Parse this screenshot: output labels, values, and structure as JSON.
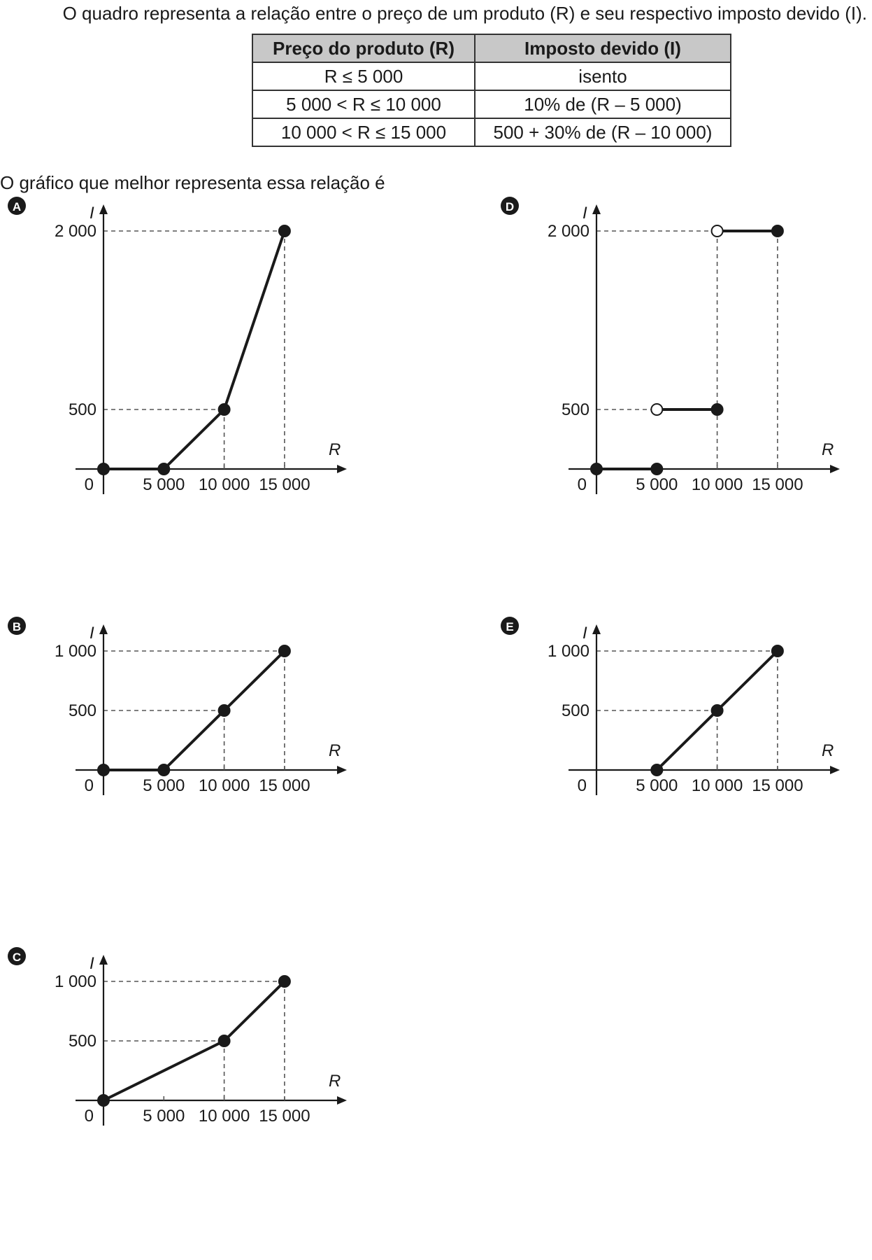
{
  "intro_text": "O quadro representa a relação entre o preço de um produto (R) e seu respectivo imposto devido (I).",
  "question_text": "O gráfico que melhor representa essa relação é",
  "table": {
    "headers": [
      "Preço do produto (R)",
      "Imposto devido (I)"
    ],
    "rows": [
      [
        "R ≤ 5 000",
        "isento"
      ],
      [
        "5 000 < R ≤ 10 000",
        "10% de (R – 5 000)"
      ],
      [
        "10 000 < R ≤ 15 000",
        "500 + 30% de (R – 10 000)"
      ]
    ]
  },
  "chart_data": [
    {
      "option": "A",
      "type": "line",
      "xlabel": "R",
      "ylabel": "I",
      "origin_label": "0",
      "x_ticks": [
        "5 000",
        "10 000",
        "15 000"
      ],
      "y_ticks": [
        {
          "value": 500,
          "label": "500"
        },
        {
          "value": 2000,
          "label": "2 000"
        }
      ],
      "ylim": [
        0,
        2000
      ],
      "segments": [
        {
          "points": [
            [
              0,
              0
            ],
            [
              5000,
              0
            ],
            [
              10000,
              500
            ],
            [
              15000,
              2000
            ]
          ]
        }
      ],
      "markers": [
        {
          "x": 0,
          "y": 0,
          "filled": true
        },
        {
          "x": 5000,
          "y": 0,
          "filled": true
        },
        {
          "x": 10000,
          "y": 500,
          "filled": true
        },
        {
          "x": 15000,
          "y": 2000,
          "filled": true
        }
      ]
    },
    {
      "option": "B",
      "type": "line",
      "xlabel": "R",
      "ylabel": "I",
      "origin_label": "0",
      "x_ticks": [
        "5 000",
        "10 000",
        "15 000"
      ],
      "y_ticks": [
        {
          "value": 500,
          "label": "500"
        },
        {
          "value": 1000,
          "label": "1 000"
        }
      ],
      "ylim": [
        0,
        1000
      ],
      "segments": [
        {
          "points": [
            [
              0,
              0
            ],
            [
              5000,
              0
            ],
            [
              10000,
              500
            ],
            [
              15000,
              1000
            ]
          ]
        }
      ],
      "markers": [
        {
          "x": 0,
          "y": 0,
          "filled": true
        },
        {
          "x": 5000,
          "y": 0,
          "filled": true
        },
        {
          "x": 10000,
          "y": 500,
          "filled": true
        },
        {
          "x": 15000,
          "y": 1000,
          "filled": true
        }
      ]
    },
    {
      "option": "C",
      "type": "line",
      "xlabel": "R",
      "ylabel": "I",
      "origin_label": "0",
      "x_ticks": [
        "5 000",
        "10 000",
        "15 000"
      ],
      "y_ticks": [
        {
          "value": 500,
          "label": "500"
        },
        {
          "value": 1000,
          "label": "1 000"
        }
      ],
      "ylim": [
        0,
        1000
      ],
      "segments": [
        {
          "points": [
            [
              0,
              0
            ],
            [
              10000,
              500
            ],
            [
              15000,
              1000
            ]
          ]
        }
      ],
      "markers": [
        {
          "x": 0,
          "y": 0,
          "filled": true
        },
        {
          "x": 10000,
          "y": 500,
          "filled": true
        },
        {
          "x": 15000,
          "y": 1000,
          "filled": true
        }
      ]
    },
    {
      "option": "D",
      "type": "line",
      "xlabel": "R",
      "ylabel": "I",
      "origin_label": "0",
      "x_ticks": [
        "5 000",
        "10 000",
        "15 000"
      ],
      "y_ticks": [
        {
          "value": 500,
          "label": "500"
        },
        {
          "value": 2000,
          "label": "2 000"
        }
      ],
      "ylim": [
        0,
        2000
      ],
      "segments": [
        {
          "points": [
            [
              0,
              0
            ],
            [
              5000,
              0
            ]
          ]
        },
        {
          "points": [
            [
              5000,
              500
            ],
            [
              10000,
              500
            ]
          ]
        },
        {
          "points": [
            [
              10000,
              2000
            ],
            [
              15000,
              2000
            ]
          ]
        }
      ],
      "markers": [
        {
          "x": 0,
          "y": 0,
          "filled": true
        },
        {
          "x": 5000,
          "y": 0,
          "filled": true
        },
        {
          "x": 5000,
          "y": 500,
          "filled": false
        },
        {
          "x": 10000,
          "y": 500,
          "filled": true
        },
        {
          "x": 10000,
          "y": 2000,
          "filled": false
        },
        {
          "x": 15000,
          "y": 2000,
          "filled": true
        }
      ]
    },
    {
      "option": "E",
      "type": "line",
      "xlabel": "R",
      "ylabel": "I",
      "origin_label": "0",
      "x_ticks": [
        "5 000",
        "10 000",
        "15 000"
      ],
      "y_ticks": [
        {
          "value": 500,
          "label": "500"
        },
        {
          "value": 1000,
          "label": "1 000"
        }
      ],
      "ylim": [
        0,
        1000
      ],
      "segments": [
        {
          "points": [
            [
              5000,
              0
            ],
            [
              10000,
              500
            ],
            [
              15000,
              1000
            ]
          ]
        }
      ],
      "markers": [
        {
          "x": 5000,
          "y": 0,
          "filled": true
        },
        {
          "x": 10000,
          "y": 500,
          "filled": true
        },
        {
          "x": 15000,
          "y": 1000,
          "filled": true
        }
      ]
    }
  ]
}
